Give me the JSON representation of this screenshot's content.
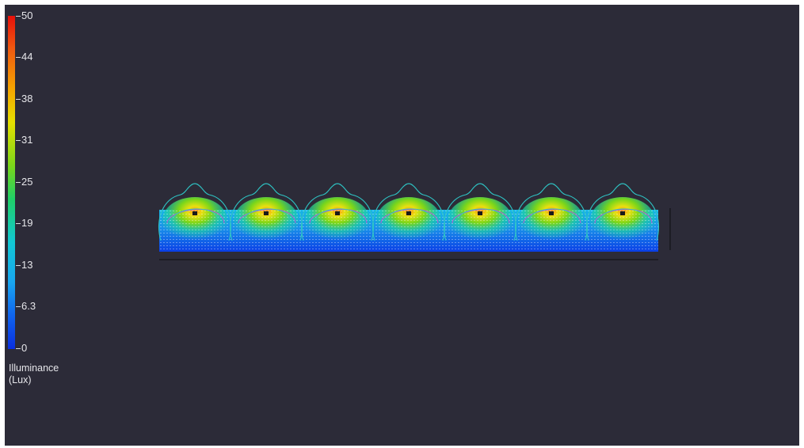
{
  "legend": {
    "ticks": [
      "50",
      "44",
      "38",
      "31",
      "25",
      "19",
      "13",
      "6.3",
      "0"
    ],
    "title_line1": "Illuminance",
    "title_line2": "(Lux)",
    "min": 0,
    "max": 50,
    "colors": [
      "#0a2fe0",
      "#1064ee",
      "#18a6f0",
      "#12c8d4",
      "#1fcf67",
      "#7ad61a",
      "#e6e000",
      "#f5a500",
      "#f05a10",
      "#e8100a"
    ]
  },
  "viewport": {
    "background": "#2c2b38",
    "luminaire_count": 7,
    "contour_color": "#2ec4c4",
    "inner_contour_color": "#b65ad8"
  }
}
